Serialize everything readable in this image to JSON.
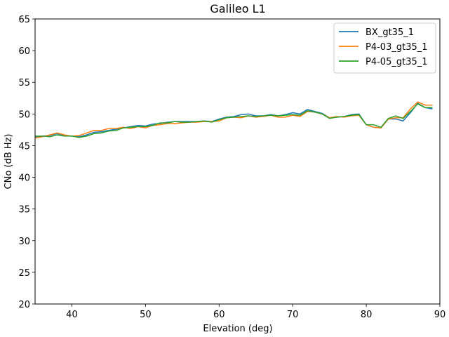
{
  "chart_data": {
    "type": "line",
    "title": "Galileo L1",
    "xlabel": "Elevation (deg)",
    "ylabel": "CNo (dB Hz)",
    "xlim": [
      35,
      90
    ],
    "ylim": [
      20,
      65
    ],
    "xticks": [
      40,
      50,
      60,
      70,
      80,
      90
    ],
    "yticks": [
      20,
      25,
      30,
      35,
      40,
      45,
      50,
      55,
      60,
      65
    ],
    "grid": false,
    "legend_position": "upper-right",
    "x": [
      35,
      36,
      37,
      38,
      39,
      40,
      41,
      42,
      43,
      44,
      45,
      46,
      47,
      48,
      49,
      50,
      51,
      52,
      53,
      54,
      55,
      56,
      57,
      58,
      59,
      60,
      61,
      62,
      63,
      64,
      65,
      66,
      67,
      68,
      69,
      70,
      71,
      72,
      73,
      74,
      75,
      76,
      77,
      78,
      79,
      80,
      81,
      82,
      83,
      84,
      85,
      86,
      87,
      88,
      89
    ],
    "series": [
      {
        "name": "BX_gt35_1",
        "color": "#1f77b4",
        "values": [
          46.4,
          46.5,
          46.6,
          46.9,
          46.6,
          46.5,
          46.4,
          46.7,
          47.1,
          47.2,
          47.4,
          47.6,
          47.8,
          48.0,
          48.2,
          48.1,
          48.4,
          48.5,
          48.7,
          48.8,
          48.8,
          48.8,
          48.8,
          48.9,
          48.8,
          49.2,
          49.5,
          49.6,
          49.9,
          50.0,
          49.7,
          49.7,
          49.9,
          49.7,
          49.9,
          50.2,
          50.0,
          50.7,
          50.4,
          50.1,
          49.4,
          49.5,
          49.6,
          49.9,
          50.0,
          48.3,
          47.9,
          47.8,
          49.2,
          49.2,
          48.9,
          50.2,
          51.7,
          51.0,
          50.8
        ]
      },
      {
        "name": "P4-03_gt35_1",
        "color": "#ff7f0e",
        "values": [
          46.2,
          46.4,
          46.7,
          47.0,
          46.7,
          46.5,
          46.6,
          47.0,
          47.4,
          47.4,
          47.7,
          47.7,
          47.9,
          47.7,
          48.0,
          47.8,
          48.2,
          48.3,
          48.5,
          48.5,
          48.6,
          48.7,
          48.7,
          48.8,
          48.8,
          48.9,
          49.4,
          49.5,
          49.4,
          49.7,
          49.5,
          49.6,
          49.8,
          49.5,
          49.5,
          49.8,
          49.6,
          50.4,
          50.3,
          50.0,
          49.4,
          49.6,
          49.5,
          49.7,
          49.8,
          48.3,
          47.9,
          47.8,
          49.2,
          49.4,
          49.4,
          50.8,
          51.9,
          51.4,
          51.4
        ]
      },
      {
        "name": "P4-05_gt35_1",
        "color": "#2ca02c",
        "values": [
          46.5,
          46.5,
          46.4,
          46.7,
          46.5,
          46.5,
          46.3,
          46.5,
          46.9,
          47.0,
          47.3,
          47.4,
          47.8,
          47.9,
          48.0,
          48.0,
          48.2,
          48.6,
          48.6,
          48.8,
          48.7,
          48.7,
          48.8,
          48.9,
          48.7,
          49.1,
          49.4,
          49.5,
          49.6,
          49.7,
          49.6,
          49.7,
          49.8,
          49.7,
          49.8,
          49.9,
          49.8,
          50.5,
          50.3,
          50.0,
          49.3,
          49.5,
          49.6,
          49.8,
          49.9,
          48.3,
          48.3,
          47.9,
          49.3,
          49.7,
          49.3,
          50.4,
          51.6,
          51.0,
          51.0
        ]
      }
    ]
  }
}
